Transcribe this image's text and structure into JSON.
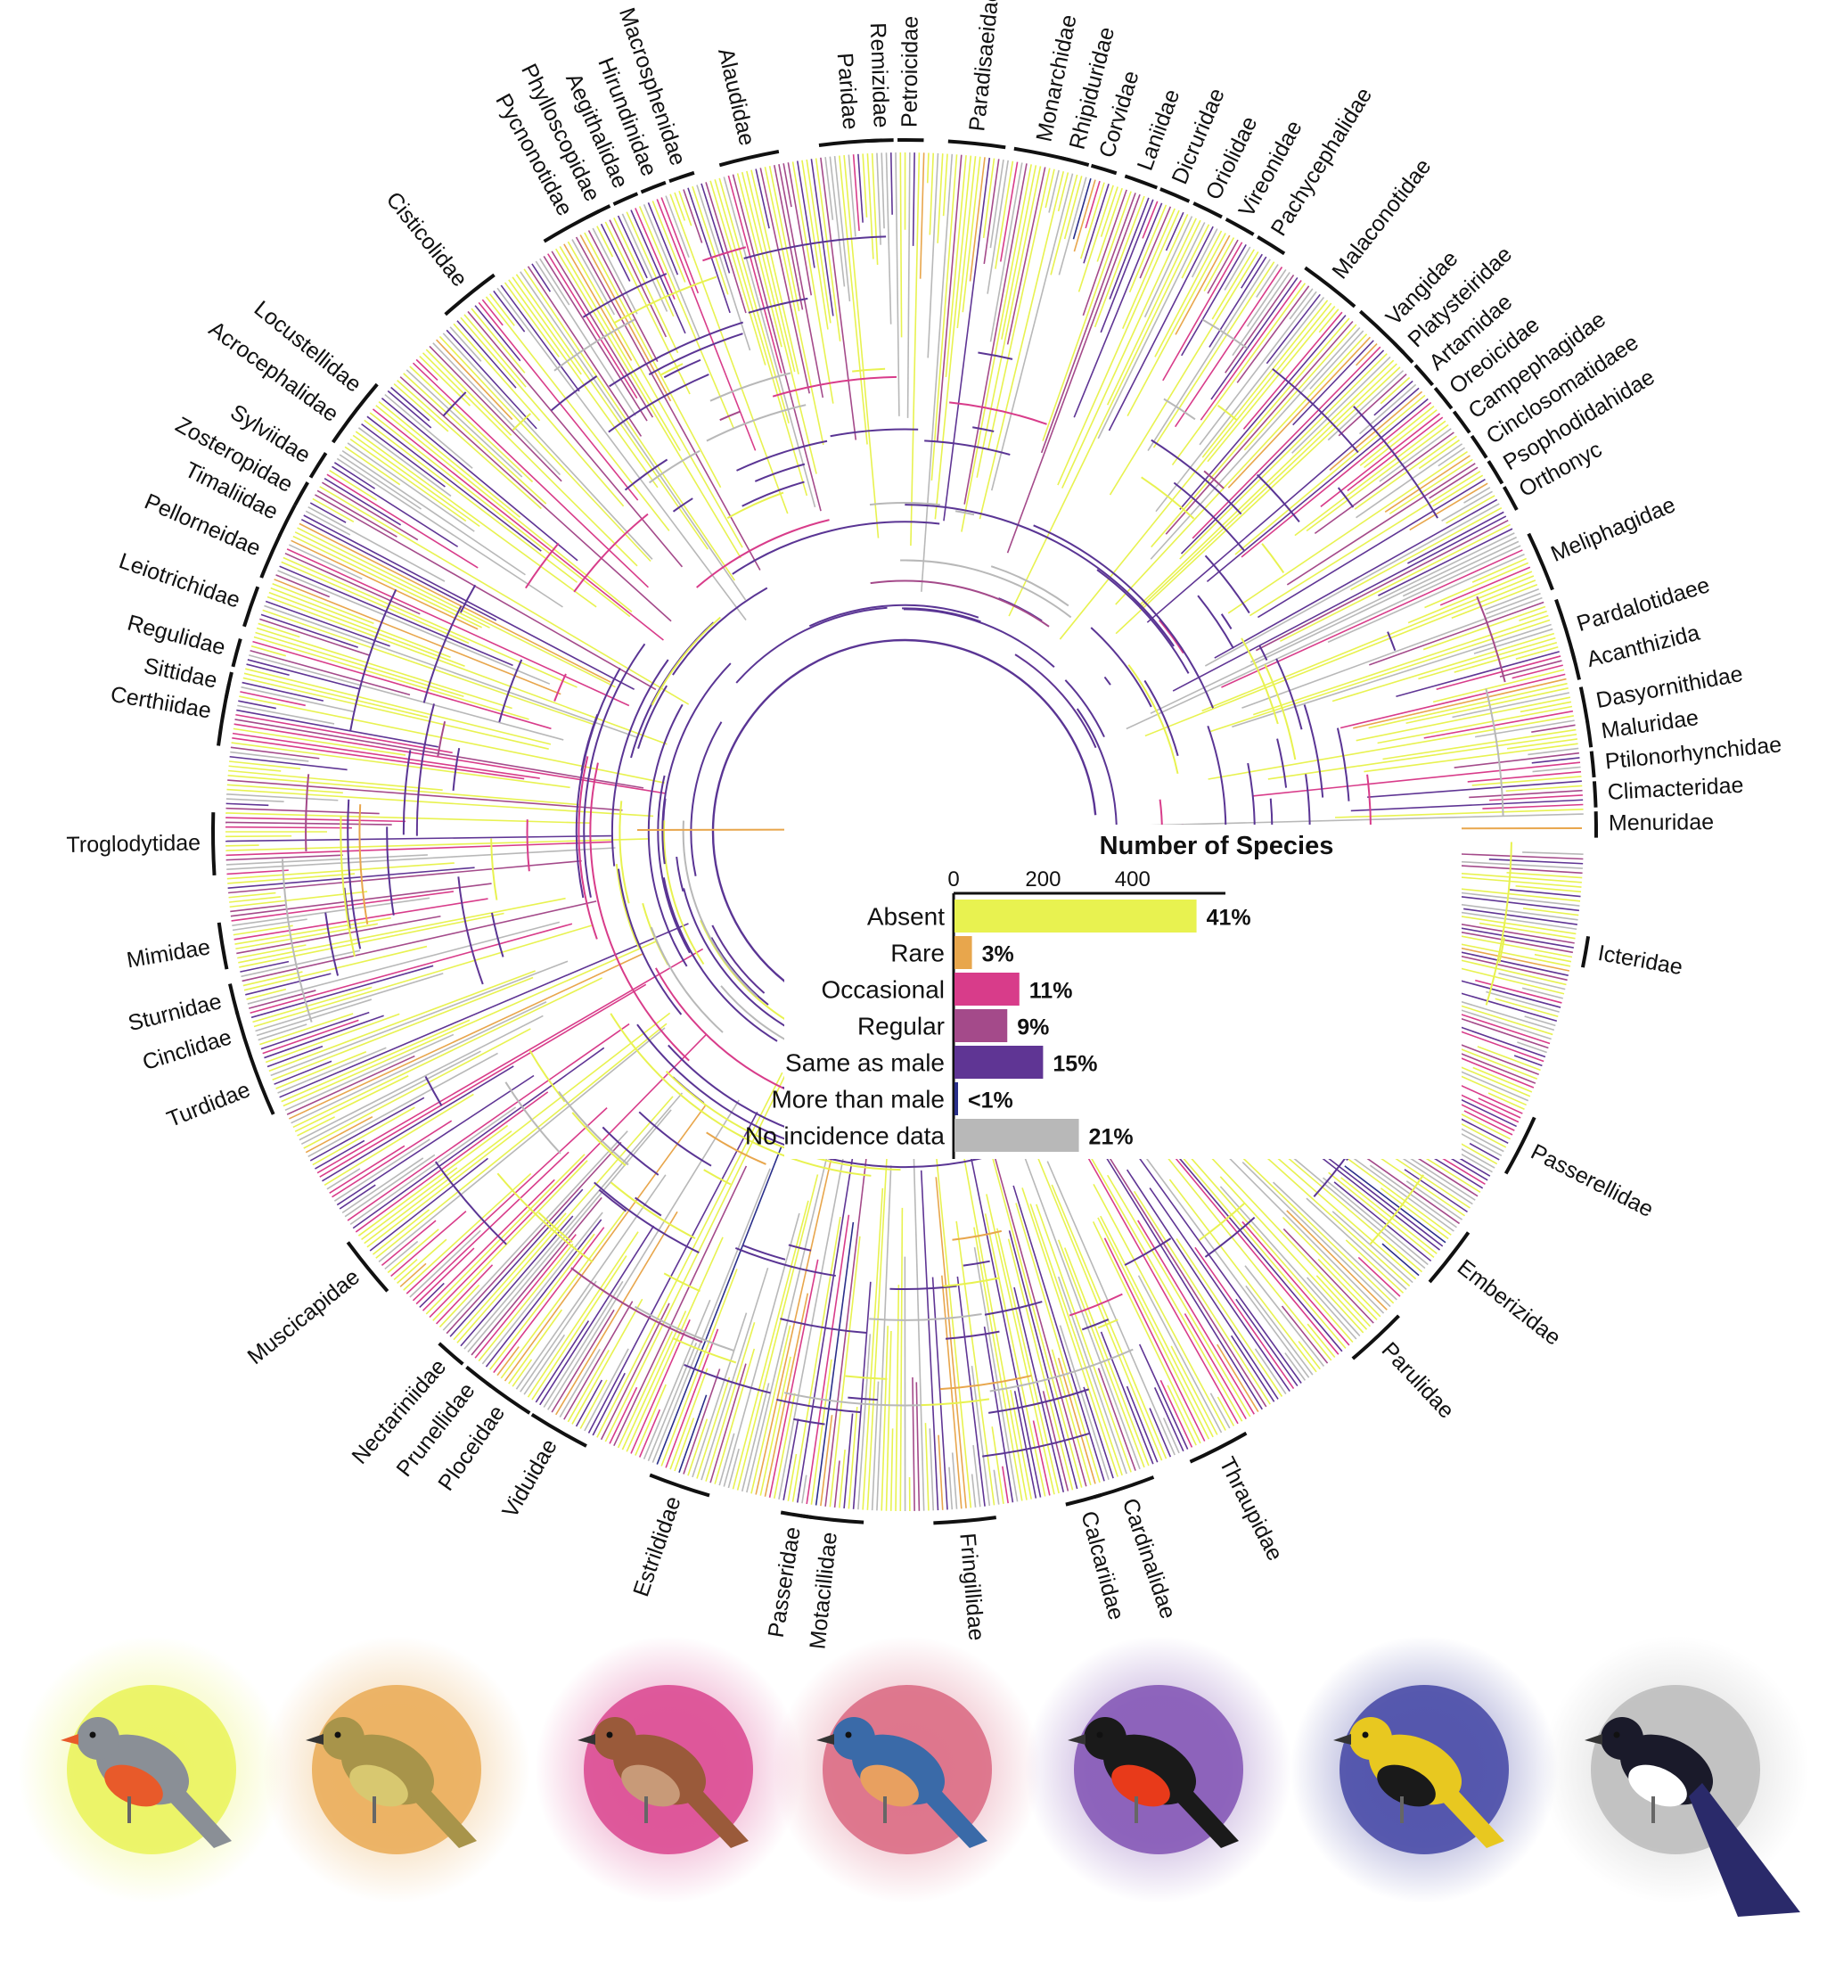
{
  "chart_data": {
    "type": "bar",
    "orientation": "horizontal",
    "title": "Number of Species",
    "xlabel": "Number of Species",
    "xticks": [
      "0",
      "200",
      "400"
    ],
    "xlim": [
      0,
      600
    ],
    "categories": [
      "Absent",
      "Rare",
      "Occasional",
      "Regular",
      "Same as male",
      "More than male",
      "No incidence data"
    ],
    "values": [
      541,
      39,
      145,
      118,
      198,
      6,
      278
    ],
    "percent_labels": [
      "41%",
      "3%",
      "11%",
      "9%",
      "15%",
      "<1%",
      "21%"
    ],
    "colors": [
      "#e8f250",
      "#e8a64c",
      "#d83c8a",
      "#a44a8a",
      "#5f3594",
      "#2a2f8a",
      "#b8b8b8"
    ]
  },
  "tree": {
    "type": "circular phylogeny (branches colored by category)",
    "families": [
      "Menuridae",
      "Climacteridae",
      "Ptilonorhynchidae",
      "Maluridae",
      "Dasyornithidae",
      "Acanthizida",
      "Pardalotidaee",
      "Meliphagidae",
      "Orthonyc",
      "Psophodidahidae",
      "Cinclosomatidaee",
      "Campephagidae",
      "Oreoicidae",
      "Artamidae",
      "Platysteiridae",
      "Vangidae",
      "Malaconotidae",
      "Pachycephalidae",
      "Vireonidae",
      "Oriolidae",
      "Dicruridae",
      "Laniidae",
      "Corvidae",
      "Rhipiduridae",
      "Monarchidae",
      "Paradisaeidae",
      "Petroicidae",
      "Remizidae",
      "Paridae",
      "Alaudidae",
      "Macrosphenidae",
      "Hirundinidae",
      "Aegithalidae",
      "Phylloscopidae",
      "Pycnonotidae",
      "Cisticolidae",
      "Locustellidae",
      "Acrocephalidae",
      "Sylviidae",
      "Zosteropidae",
      "Timaliidae",
      "Pellorneidae",
      "Leiotrichidae",
      "Regulidae",
      "Sittidae",
      "Certhiidae",
      "Troglodytidae",
      "Mimidae",
      "Sturnidae",
      "Cinclidae",
      "Turdidae",
      "Muscicapidae",
      "Nectariniidae",
      "Prunellidae",
      "Ploceidae",
      "Viduidae",
      "Estrildidae",
      "Passeridae",
      "Motacillidae",
      "Fringillidae",
      "Calcariidae",
      "Cardinalidae",
      "Thraupidae",
      "Parulidae",
      "Emberizidae",
      "Passerellidae",
      "Icteridae"
    ]
  },
  "birds": [
    {
      "name": "zebra finch",
      "category": "Absent",
      "color": "#e8f250"
    },
    {
      "name": "reed warbler",
      "category": "Rare",
      "color": "#e8a64c"
    },
    {
      "name": "wren",
      "category": "Occasional",
      "color": "#d83c8a"
    },
    {
      "name": "bluebird",
      "category": "Regular",
      "color": "#d8607a"
    },
    {
      "name": "red-breasted tanager",
      "category": "Same as male",
      "color": "#7a4ab0"
    },
    {
      "name": "oriole",
      "category": "More than male",
      "color": "#3a3ca0"
    },
    {
      "name": "magpie",
      "category": "No incidence data",
      "color": "#b8b8b8"
    }
  ]
}
